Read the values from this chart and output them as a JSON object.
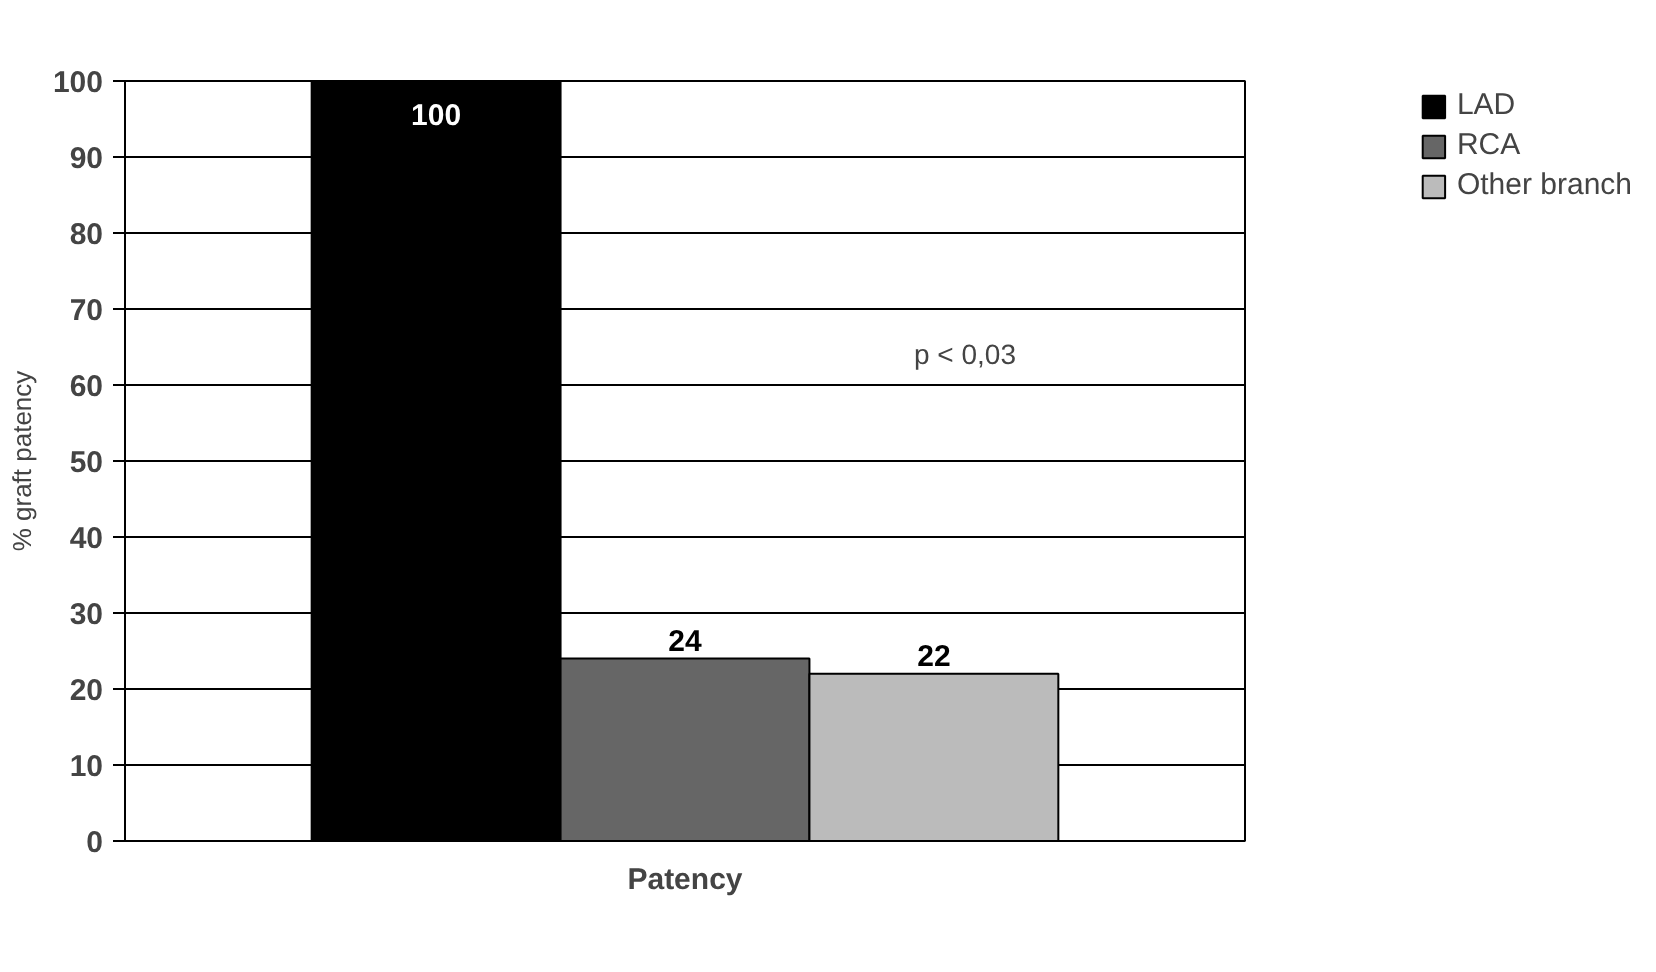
{
  "chart_data": {
    "type": "bar",
    "ylabel": "% graft patency",
    "categories": [
      "Patency"
    ],
    "series": [
      {
        "name": "LAD",
        "color": "#000000",
        "values": [
          100
        ]
      },
      {
        "name": "RCA",
        "color": "#666666",
        "values": [
          24
        ]
      },
      {
        "name": "Other branch",
        "color": "#bbbbbb",
        "values": [
          22
        ]
      }
    ],
    "ylim": [
      0,
      100
    ],
    "yticks": [
      0,
      10,
      20,
      30,
      40,
      50,
      60,
      70,
      80,
      90,
      100
    ],
    "grid": "y",
    "legend": "right",
    "data_labels": true,
    "annotations": [
      "p < 0,03"
    ]
  }
}
